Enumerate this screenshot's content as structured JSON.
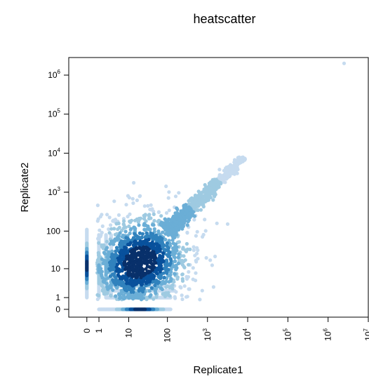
{
  "chart_data": {
    "type": "scatter",
    "title": "heatscatter",
    "xlabel": "Replicate1",
    "ylabel": "Replicate2",
    "scale": "log10(value + 1)",
    "xlim_log": [
      -0.45,
      7.0
    ],
    "ylim_log": [
      -0.2,
      6.45
    ],
    "x_ticks": [
      {
        "value": 0,
        "label": "0"
      },
      {
        "value": 1,
        "label": "1"
      },
      {
        "value": 10,
        "label": "10"
      },
      {
        "value": 100,
        "label": "100"
      },
      {
        "value": 1000,
        "label": "10",
        "sup": "3"
      },
      {
        "value": 10000,
        "label": "10",
        "sup": "4"
      },
      {
        "value": 100000,
        "label": "10",
        "sup": "5"
      },
      {
        "value": 1000000,
        "label": "10",
        "sup": "6"
      },
      {
        "value": 10000000,
        "label": "10",
        "sup": "7"
      }
    ],
    "y_ticks": [
      {
        "value": 0,
        "label": "0"
      },
      {
        "value": 1,
        "label": "1"
      },
      {
        "value": 10,
        "label": "10"
      },
      {
        "value": 100,
        "label": "100"
      },
      {
        "value": 1000,
        "label": "10",
        "sup": "3"
      },
      {
        "value": 10000,
        "label": "10",
        "sup": "4"
      },
      {
        "value": 100000,
        "label": "10",
        "sup": "5"
      },
      {
        "value": 1000000,
        "label": "10",
        "sup": "6"
      }
    ],
    "density_colors": [
      "#c6dbef",
      "#9ecae1",
      "#6baed6",
      "#3182bd",
      "#08519c",
      "#08306b"
    ],
    "clusters": [
      {
        "kind": "blob",
        "x": 20,
        "y": 15,
        "spread_x": 0.42,
        "spread_y": 0.42,
        "density": 1.0
      },
      {
        "kind": "diagonal",
        "x_from": 100,
        "x_to": 8000,
        "spread": 0.13,
        "density": 0.45
      },
      {
        "kind": "column",
        "x": 0,
        "y_from": 1,
        "y_to": 110,
        "peak_y": 12,
        "density": 0.9
      },
      {
        "kind": "row",
        "y": 0,
        "x_from": 1,
        "x_to": 120,
        "peak_x": 20,
        "density": 0.9
      },
      {
        "kind": "column",
        "x": 1,
        "y_from": 1,
        "y_to": 80,
        "peak_y": 10,
        "density": 0.35
      },
      {
        "kind": "column",
        "x": 2,
        "y_from": 1,
        "y_to": 80,
        "peak_y": 10,
        "density": 0.35
      },
      {
        "kind": "column",
        "x": 3,
        "y_from": 1,
        "y_to": 80,
        "peak_y": 10,
        "density": 0.3
      },
      {
        "kind": "row",
        "y": 1,
        "x_from": 2,
        "x_to": 120,
        "peak_x": 15,
        "density": 0.35
      },
      {
        "kind": "row",
        "y": 2,
        "x_from": 3,
        "x_to": 150,
        "peak_x": 15,
        "density": 0.3
      },
      {
        "kind": "row",
        "y": 3,
        "x_from": 3,
        "x_to": 150,
        "peak_x": 15,
        "density": 0.3
      }
    ],
    "outliers": [
      {
        "x": 2500000,
        "y": 2000000
      }
    ],
    "legend": "none",
    "grid": false
  }
}
